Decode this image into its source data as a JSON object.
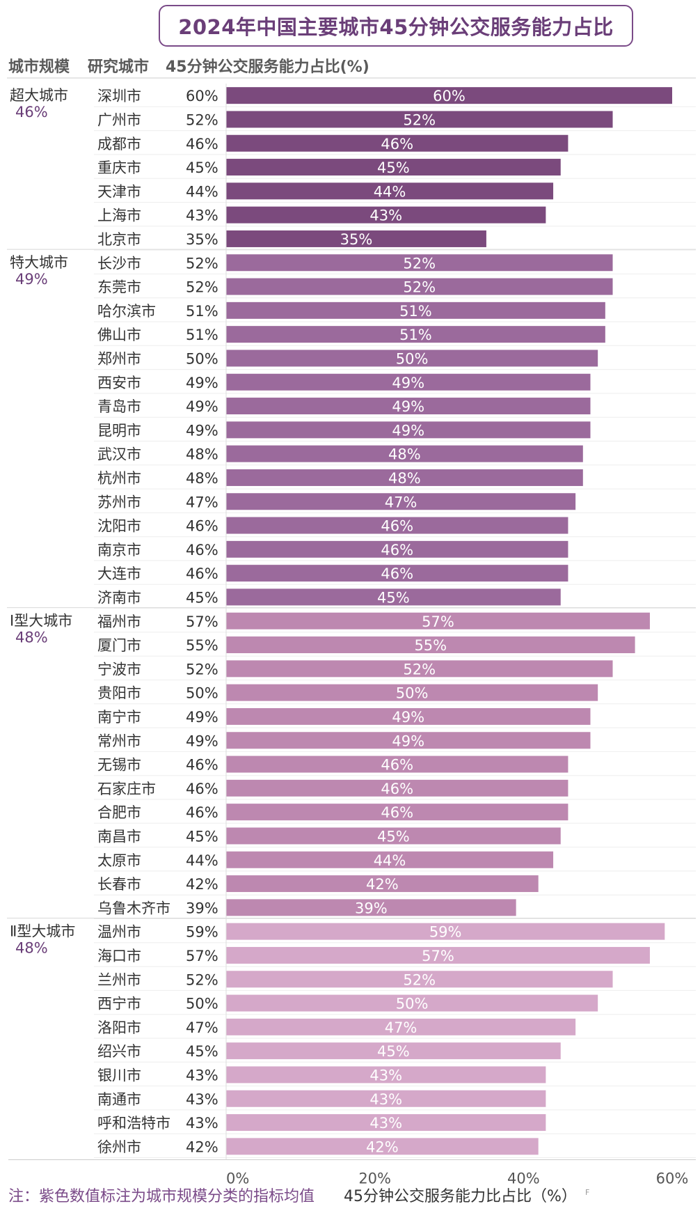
{
  "chart_data": {
    "type": "bar",
    "orientation": "horizontal",
    "title": "2024年中国主要城市45分钟公交服务能力占比",
    "column_headers": {
      "tier": "城市规模",
      "city": "研究城市",
      "value": "45分钟公交服务能力占比(%)"
    },
    "xlabel": "45分钟公交服务能力比占比（%）",
    "xlim": [
      0,
      60
    ],
    "x_ticks": [
      "0%",
      "20%",
      "40%",
      "60%"
    ],
    "x_tick_values": [
      0,
      20,
      40,
      60
    ],
    "footnote": "注：紫色数值标注为城市规模分类的指标均值",
    "groups": [
      {
        "name": "超大城市",
        "mean": "46%",
        "color": "#7b4a7d",
        "cities": [
          "深圳市",
          "广州市",
          "成都市",
          "重庆市",
          "天津市",
          "上海市",
          "北京市"
        ],
        "values": [
          60,
          52,
          46,
          45,
          44,
          43,
          35
        ]
      },
      {
        "name": "特大城市",
        "mean": "49%",
        "color": "#9b6a9c",
        "cities": [
          "长沙市",
          "东莞市",
          "哈尔滨市",
          "佛山市",
          "郑州市",
          "西安市",
          "青岛市",
          "昆明市",
          "武汉市",
          "杭州市",
          "苏州市",
          "沈阳市",
          "南京市",
          "大连市",
          "济南市"
        ],
        "values": [
          52,
          52,
          51,
          51,
          50,
          49,
          49,
          49,
          48,
          48,
          47,
          46,
          46,
          46,
          45
        ]
      },
      {
        "name": "Ⅰ型大城市",
        "mean": "48%",
        "color": "#bd88b0",
        "cities": [
          "福州市",
          "厦门市",
          "宁波市",
          "贵阳市",
          "南宁市",
          "常州市",
          "无锡市",
          "石家庄市",
          "合肥市",
          "南昌市",
          "太原市",
          "长春市",
          "乌鲁木齐市"
        ],
        "values": [
          57,
          55,
          52,
          50,
          49,
          49,
          46,
          46,
          46,
          45,
          44,
          42,
          39
        ]
      },
      {
        "name": "Ⅱ型大城市",
        "mean": "48%",
        "color": "#d5a8c9",
        "cities": [
          "温州市",
          "海口市",
          "兰州市",
          "西宁市",
          "洛阳市",
          "绍兴市",
          "银川市",
          "南通市",
          "呼和浩特市",
          "徐州市"
        ],
        "values": [
          59,
          57,
          52,
          50,
          47,
          45,
          43,
          43,
          43,
          42
        ]
      }
    ],
    "value_suffix": "%"
  },
  "corner_mark": "F"
}
